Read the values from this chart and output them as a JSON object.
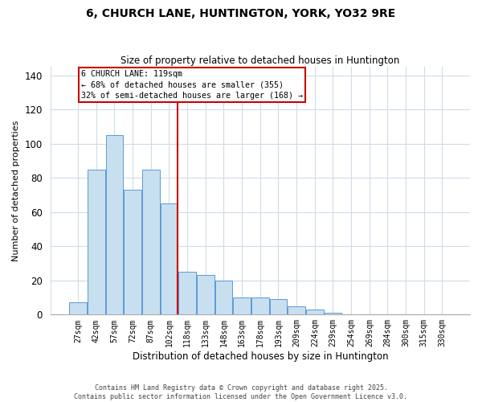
{
  "title": "6, CHURCH LANE, HUNTINGTON, YORK, YO32 9RE",
  "subtitle": "Size of property relative to detached houses in Huntington",
  "xlabel": "Distribution of detached houses by size in Huntington",
  "ylabel": "Number of detached properties",
  "bar_labels": [
    "27sqm",
    "42sqm",
    "57sqm",
    "72sqm",
    "87sqm",
    "102sqm",
    "118sqm",
    "133sqm",
    "148sqm",
    "163sqm",
    "178sqm",
    "193sqm",
    "209sqm",
    "224sqm",
    "239sqm",
    "254sqm",
    "269sqm",
    "284sqm",
    "300sqm",
    "315sqm",
    "330sqm"
  ],
  "bar_values": [
    7,
    85,
    105,
    73,
    85,
    65,
    25,
    23,
    20,
    10,
    10,
    9,
    5,
    3,
    1,
    0,
    0,
    0,
    0,
    0,
    0
  ],
  "bar_color": "#c8dff0",
  "bar_edge_color": "#5b9bd5",
  "vline_color": "#cc0000",
  "annotation_title": "6 CHURCH LANE: 119sqm",
  "annotation_line1": "← 68% of detached houses are smaller (355)",
  "annotation_line2": "32% of semi-detached houses are larger (168) →",
  "annotation_box_color": "#cc0000",
  "ylim": [
    0,
    145
  ],
  "yticks": [
    0,
    20,
    40,
    60,
    80,
    100,
    120,
    140
  ],
  "footnote1": "Contains HM Land Registry data © Crown copyright and database right 2025.",
  "footnote2": "Contains public sector information licensed under the Open Government Licence v3.0.",
  "background_color": "#ffffff",
  "grid_color": "#d0dce8"
}
